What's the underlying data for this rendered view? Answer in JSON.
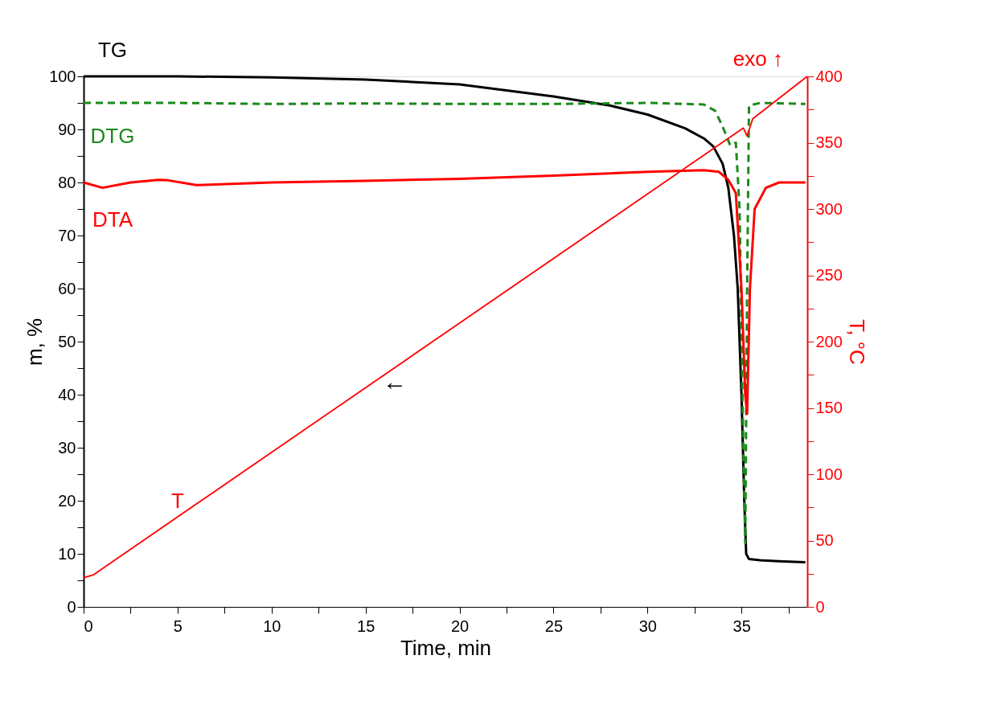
{
  "chart_data": {
    "type": "line",
    "xlabel": "Time, min",
    "ylabel": "m, %",
    "y2label": "T, °C",
    "xlim": [
      0,
      38.5
    ],
    "ylim": [
      0,
      100
    ],
    "y2lim": [
      0,
      400
    ],
    "xticks": [
      0,
      {
        "value": 2.5,
        "label": null
      },
      5,
      {
        "value": 7.5,
        "label": null
      },
      10,
      {
        "value": 12.5,
        "label": null
      },
      15,
      {
        "value": 17.5,
        "label": null
      },
      20,
      {
        "value": 22.5,
        "label": null
      },
      25,
      {
        "value": 27.5,
        "label": null
      },
      30,
      {
        "value": 32.5,
        "label": null
      },
      35,
      {
        "value": 37.5,
        "label": null
      }
    ],
    "yticks": [
      0,
      {
        "value": 5,
        "label": null
      },
      10,
      {
        "value": 15,
        "label": null
      },
      20,
      {
        "value": 25,
        "label": null
      },
      30,
      {
        "value": 35,
        "label": null
      },
      40,
      {
        "value": 45,
        "label": null
      },
      50,
      {
        "value": 55,
        "label": null
      },
      60,
      {
        "value": 65,
        "label": null
      },
      70,
      {
        "value": 75,
        "label": null
      },
      80,
      {
        "value": 85,
        "label": null
      },
      90,
      {
        "value": 95,
        "label": null
      },
      100
    ],
    "y2ticks": [
      0,
      {
        "value": 25,
        "label": null
      },
      50,
      {
        "value": 75,
        "label": null
      },
      100,
      {
        "value": 125,
        "label": null
      },
      150,
      {
        "value": 175,
        "label": null
      },
      200,
      {
        "value": 225,
        "label": null
      },
      250,
      {
        "value": 275,
        "label": null
      },
      300,
      {
        "value": 325,
        "label": null
      },
      350,
      {
        "value": 375,
        "label": null
      },
      400
    ],
    "grid": false,
    "legend": false,
    "marker": "none",
    "series": [
      {
        "name": "TG",
        "color": "#000000",
        "line_style": "solid",
        "x": [
          0,
          5,
          10,
          15,
          20,
          25,
          28,
          30,
          32,
          33,
          33.5,
          34,
          34.3,
          34.6,
          34.8,
          35.0,
          35.15,
          35.25,
          35.4,
          36,
          37,
          38.4
        ],
        "values": [
          100,
          100,
          99.8,
          99.4,
          98.5,
          96.2,
          94.5,
          92.8,
          90.2,
          88.3,
          86.8,
          83.5,
          79,
          70,
          60,
          40,
          20,
          10,
          9,
          8.8,
          8.6,
          8.4
        ]
      },
      {
        "name": "DTG",
        "color": "#1a8a1a",
        "line_style": "dashed",
        "x": [
          0,
          5,
          10,
          15,
          20,
          25,
          30,
          33,
          33.6,
          34.0,
          34.4,
          34.7,
          34.9,
          35.05,
          35.2,
          35.3,
          35.4,
          36,
          38.4
        ],
        "values": [
          95,
          95,
          94.8,
          94.9,
          94.8,
          94.8,
          95,
          94.7,
          93.5,
          90.5,
          87,
          87.5,
          75,
          40,
          12,
          60,
          94.5,
          95,
          94.8
        ]
      },
      {
        "name": "DTA",
        "color": "#ff0000",
        "line_style": "solid",
        "x": [
          0,
          1,
          2.5,
          4,
          4.5,
          6,
          10,
          15,
          20,
          25,
          30,
          33,
          33.8,
          34.3,
          34.7,
          35.0,
          35.2,
          35.3,
          35.45,
          35.7,
          36.3,
          37,
          38.4
        ],
        "values": [
          80,
          79,
          80,
          80.5,
          80.4,
          79.5,
          80,
          80.3,
          80.7,
          81.3,
          82,
          82.3,
          82,
          80.5,
          78,
          60,
          40,
          36.4,
          60,
          75,
          79,
          80,
          80
        ]
      },
      {
        "name": "T",
        "color": "#ff0000",
        "line_style": "solid",
        "axis": "y2",
        "x": [
          0,
          0.5,
          35.1,
          35.3,
          35.6,
          38.5
        ],
        "values": [
          22,
          24,
          361,
          355,
          368,
          400
        ]
      }
    ],
    "annotations": [
      "exo ↑",
      "←"
    ]
  }
}
